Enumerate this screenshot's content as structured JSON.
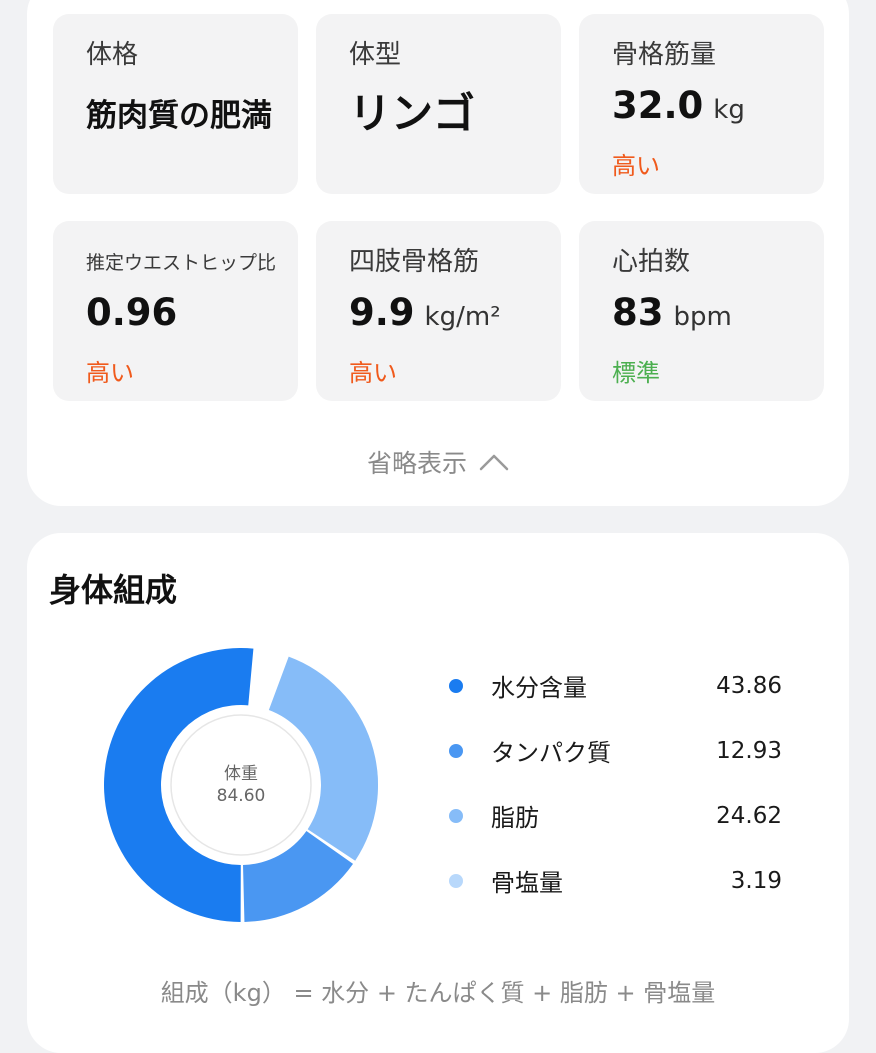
{
  "metrics": [
    {
      "label": "体格",
      "value": "筋肉質の肥満",
      "unit": "",
      "status": ""
    },
    {
      "label": "体型",
      "value": "リンゴ",
      "unit": "",
      "status": ""
    },
    {
      "label": "骨格筋量",
      "value": "32.0",
      "unit": "kg",
      "status": "高い",
      "status_color": "#f05a1c"
    },
    {
      "label": "推定ウエストヒップ比",
      "value": "0.96",
      "unit": "",
      "status": "高い",
      "status_color": "#f05a1c"
    },
    {
      "label": "四肢骨格筋",
      "value": "9.9",
      "unit": "kg/m²",
      "status": "高い",
      "status_color": "#f05a1c"
    },
    {
      "label": "心拍数",
      "value": "83",
      "unit": "bpm",
      "status": "標準",
      "status_color": "#4caf50"
    }
  ],
  "collapse_label": "省略表示",
  "composition": {
    "title": "身体組成",
    "center_label": "体重",
    "center_value": "84.60",
    "formula": "組成（kg） = 水分 + たんぱく質 + 脂肪 + 骨塩量",
    "items": [
      {
        "name": "水分含量",
        "value": "43.86",
        "color": "#1a7cf0"
      },
      {
        "name": "タンパク質",
        "value": "12.93",
        "color": "#4a97f2"
      },
      {
        "name": "脂肪",
        "value": "24.62",
        "color": "#86bcf8"
      },
      {
        "name": "骨塩量",
        "value": "3.19",
        "color": "#b8d8fb"
      }
    ]
  }
}
